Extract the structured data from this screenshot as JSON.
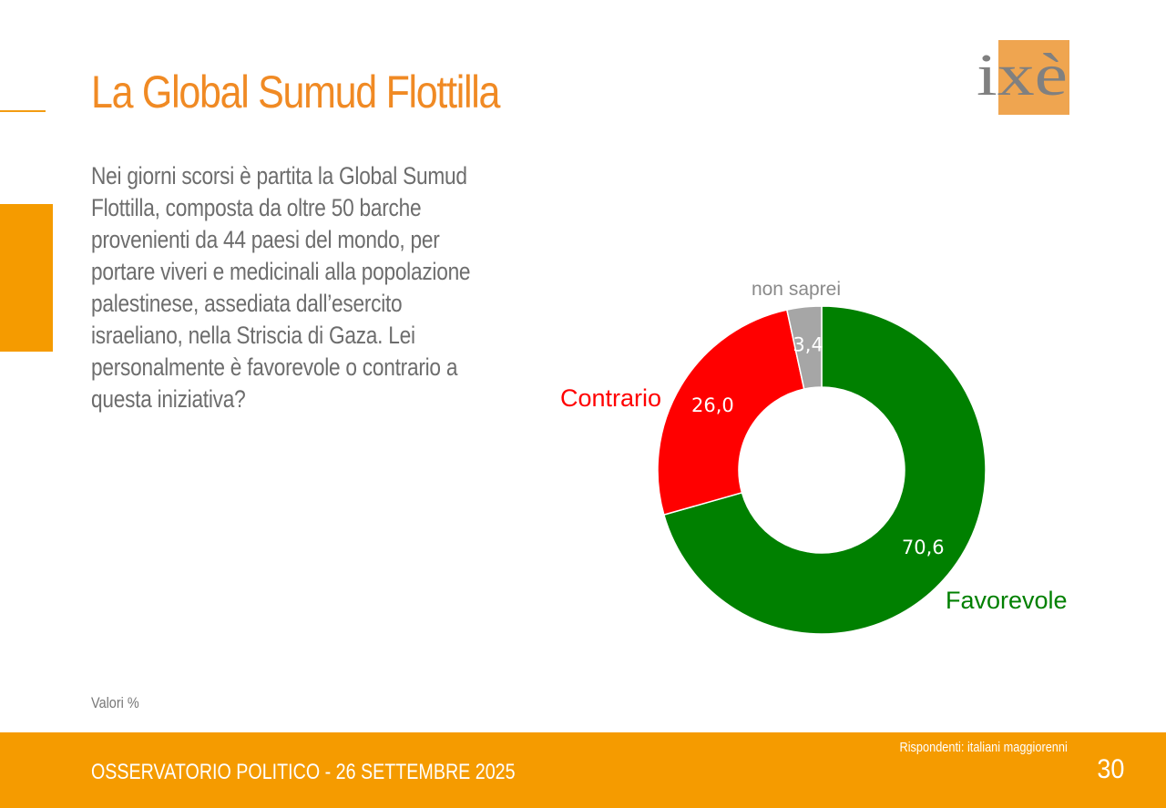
{
  "slide": {
    "title": "La Global Sumud Flottilla",
    "logo_text": "ixè",
    "question": "Nei giorni scorsi è partita la Global Sumud Flottilla, composta da oltre 50 barche provenienti da 44 paesi del mondo, per portare viveri e medicinali alla popolazione palestinese, assediata dall’esercito israeliano, nella Striscia di Gaza. Lei personalmente è favorevole o contrario a questa iniziativa?",
    "footnote": "Valori %",
    "footer_title": "OSSERVATORIO POLITICO - 26 SETTEMBRE 2025",
    "respondents": "Rispondenti: italiani maggiorenni",
    "page_number": "30"
  },
  "colors": {
    "accent": "#F59B00",
    "title": "#F08A24",
    "favorevole": "#008000",
    "contrario": "#FF0000",
    "non_saprei": "#A6A6A6"
  },
  "chart_data": {
    "type": "pie",
    "style": "donut",
    "series": [
      {
        "name": "Favorevole",
        "value": 70.6,
        "value_label": "70,6",
        "color": "#008000"
      },
      {
        "name": "Contrario",
        "value": 26.0,
        "value_label": "26,0",
        "color": "#FF0000"
      },
      {
        "name": "non saprei",
        "value": 3.4,
        "value_label": "3,4",
        "color": "#A6A6A6"
      }
    ]
  }
}
